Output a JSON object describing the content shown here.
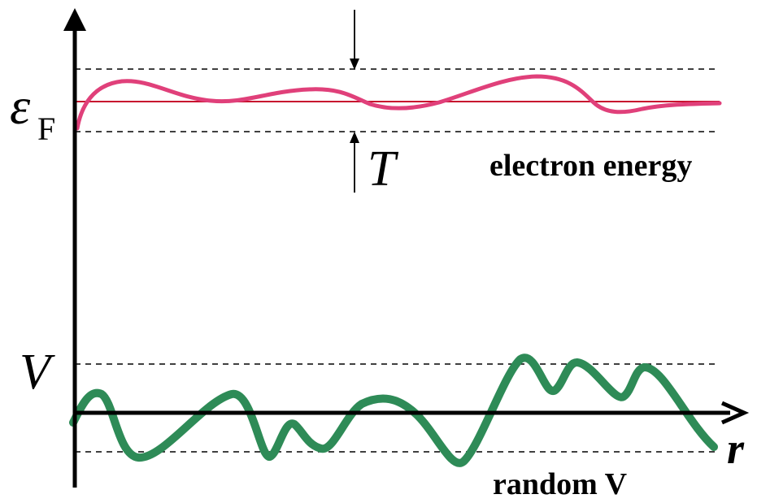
{
  "labels": {
    "fermi_symbol": "ε",
    "fermi_subscript": "F",
    "temperature": "T",
    "electron_energy": "electron energy",
    "potential": "V",
    "random_potential": "random V",
    "position_axis": "r"
  },
  "colors": {
    "axis": "#000000",
    "dashed": "#000000",
    "electron_curve": "#e0407a",
    "fermi_line": "#c8102e",
    "potential_curve": "#2e8b57"
  }
}
